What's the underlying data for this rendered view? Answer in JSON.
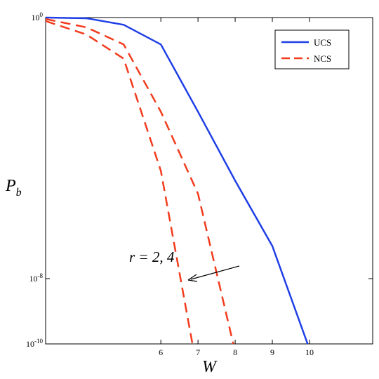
{
  "chart_data": {
    "type": "line",
    "title": "",
    "xlabel": "W",
    "ylabel": "P",
    "ylabel_sub": "b",
    "xscale": "linear",
    "yscale": "log",
    "xlim": [
      2.9,
      11.7
    ],
    "ylim": [
      1e-10,
      1
    ],
    "xticks": [
      6,
      7,
      8,
      9,
      10
    ],
    "yticks": [
      {
        "value": 1,
        "base": "10",
        "exp": "0"
      },
      {
        "value": 1e-08,
        "base": "10",
        "exp": "-8"
      },
      {
        "value": 1e-10,
        "base": "10",
        "exp": "-10"
      }
    ],
    "grid": false,
    "legend_position": "top-right",
    "series": [
      {
        "name": "UCS",
        "color": "#1f3fe6",
        "style": "solid",
        "x": [
          2.9,
          4.0,
          5.0,
          6.0,
          7.0,
          8.0,
          9.0,
          9.95
        ],
        "y": [
          1.0,
          0.95,
          0.6,
          0.15,
          0.0013,
          1e-05,
          1e-07,
          1e-10
        ]
      },
      {
        "name": "NCS",
        "color": "#f23c1d",
        "style": "dashed",
        "x": [
          2.9,
          4.0,
          5.0,
          6.0,
          7.0,
          7.95
        ],
        "y": [
          0.9,
          0.5,
          0.15,
          0.0013,
          4e-06,
          1e-10
        ]
      },
      {
        "name": "",
        "color": "#f23c1d",
        "style": "dashed",
        "x": [
          2.9,
          4.0,
          5.0,
          6.0,
          6.85
        ],
        "y": [
          0.78,
          0.3,
          0.055,
          2e-05,
          1e-10
        ]
      }
    ],
    "annotation": {
      "text": "r = 2, 4"
    }
  }
}
